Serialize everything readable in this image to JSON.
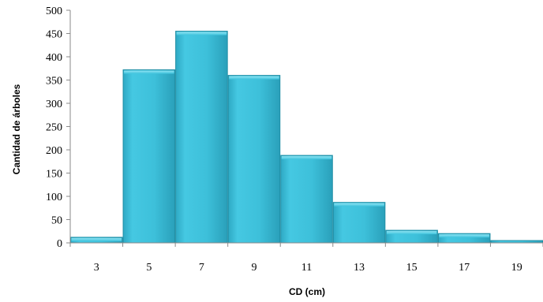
{
  "chart_data": {
    "type": "bar",
    "title": "",
    "xlabel": "CD (cm)",
    "ylabel": "Cantidad de árboles",
    "categories": [
      "3",
      "5",
      "7",
      "9",
      "11",
      "13",
      "15",
      "17",
      "19"
    ],
    "values": [
      12,
      372,
      455,
      360,
      188,
      87,
      27,
      20,
      5
    ],
    "ylim": [
      0,
      500
    ],
    "yticks": [
      "0",
      "50",
      "100",
      "150",
      "200",
      "250",
      "300",
      "350",
      "400",
      "450",
      "500"
    ],
    "grid": false,
    "legend": "none",
    "bar_color": "#3ec3dd",
    "bar_edge_color": "#1f8ea5"
  }
}
